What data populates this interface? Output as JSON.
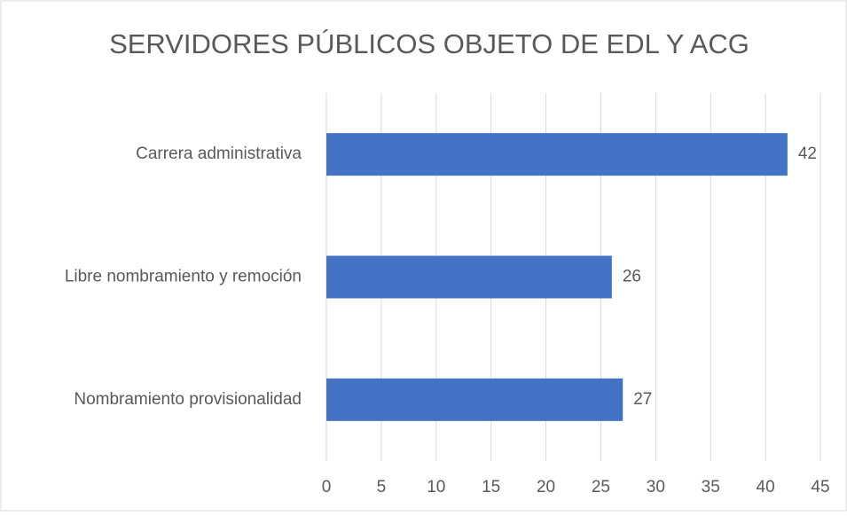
{
  "chart_data": {
    "type": "barh",
    "title": "SERVIDORES PÚBLICOS OBJETO DE EDL Y ACG",
    "categories": [
      "Carrera administrativa",
      "Libre nombramiento y remoción",
      "Nombramiento provisionalidad"
    ],
    "values": [
      42,
      26,
      27
    ],
    "color": "#4472c4",
    "xlim": [
      0,
      45
    ],
    "xticks": [
      0,
      5,
      10,
      15,
      20,
      25,
      30,
      35,
      40,
      45
    ],
    "grid": true
  }
}
